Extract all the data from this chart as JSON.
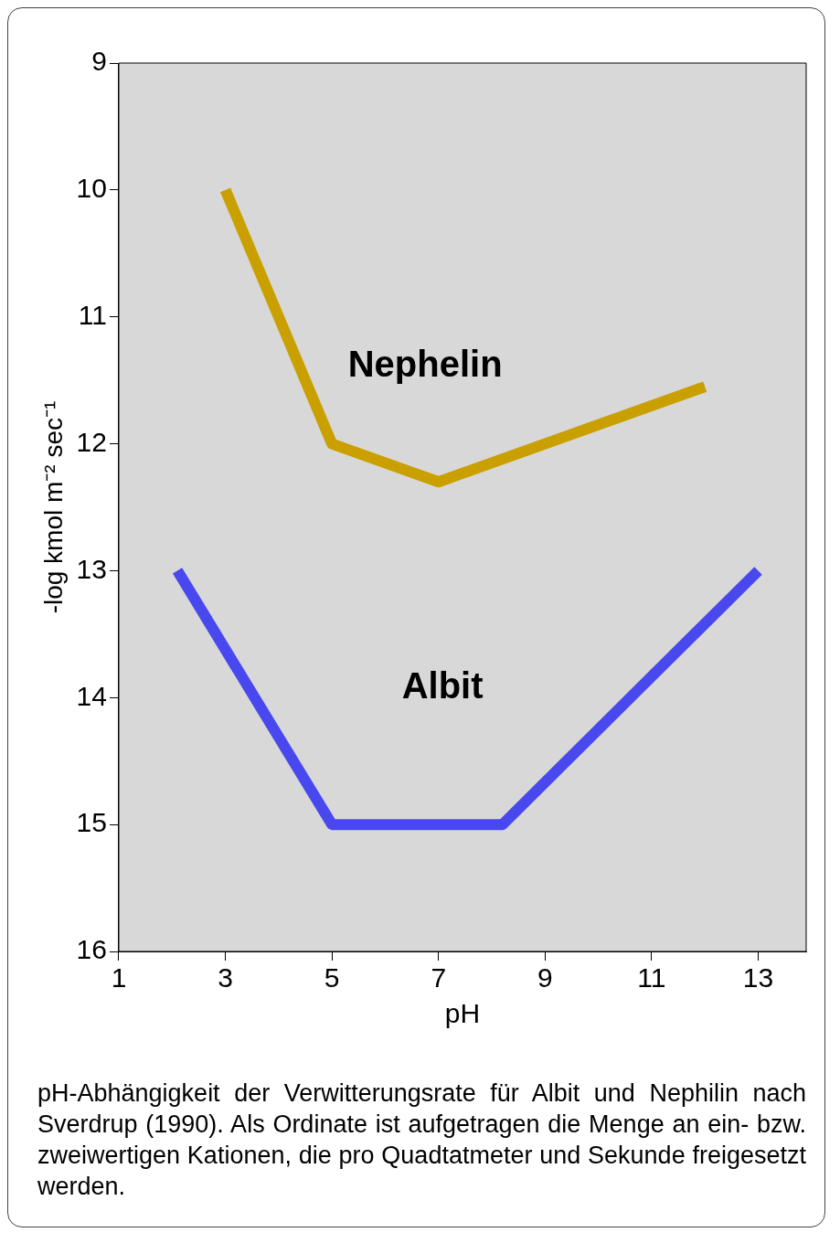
{
  "chart_data": {
    "type": "line",
    "xlabel": "pH",
    "ylabel": "-log kmol m⁻² sec⁻¹",
    "xlim": [
      1,
      13.9
    ],
    "xticks": [
      1,
      3,
      5,
      7,
      9,
      11,
      13
    ],
    "ylim": [
      16,
      9
    ],
    "yticks": [
      9,
      10,
      11,
      12,
      13,
      14,
      15,
      16
    ],
    "series": [
      {
        "name": "Nephelin",
        "color": "#c9a000",
        "x": [
          3,
          5,
          7,
          12
        ],
        "values": [
          10,
          12,
          12.3,
          11.55
        ]
      },
      {
        "name": "Albit",
        "color": "#4848ee",
        "x": [
          2.1,
          5,
          8.2,
          13
        ],
        "values": [
          13,
          15,
          15,
          13
        ]
      }
    ],
    "legend": false,
    "marker": "none",
    "line_style": "solid",
    "annotations": [
      "pH-Abhängigkeit der Verwitterungsrate für Albit und Nephilin nach Sverdrup (1990). Als Ordinate ist aufgetragen die Menge an ein- bzw. zweiwertigen Kationen, die pro Quadtatmeter und Sekunde freigesetzt werden."
    ]
  }
}
